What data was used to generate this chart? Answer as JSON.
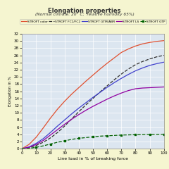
{
  "title": "Elongation properties",
  "subtitle": "(Normal climate: 20° C;  relative humidity 65%)",
  "xlabel": "Line load in % of breaking force",
  "ylabel": "Elongation in %",
  "background_color": "#f5f5d0",
  "plot_bg_color": "#dce6f0",
  "xlim": [
    0,
    100
  ],
  "ylim": [
    0,
    32
  ],
  "xticks": [
    0,
    10,
    20,
    30,
    40,
    50,
    60,
    70,
    80,
    90,
    100
  ],
  "yticks": [
    0,
    2,
    4,
    6,
    8,
    10,
    12,
    14,
    16,
    18,
    20,
    22,
    24,
    26,
    28,
    30,
    32
  ],
  "series": [
    {
      "label": "STROFT color",
      "color": "#e05030",
      "linestyle": "-",
      "linewidth": 0.9,
      "x": [
        0,
        5,
        10,
        15,
        20,
        25,
        30,
        35,
        40,
        45,
        50,
        55,
        60,
        65,
        70,
        75,
        80,
        85,
        90,
        95,
        100
      ],
      "y": [
        0,
        1.2,
        3.2,
        5.8,
        8.5,
        11.0,
        13.2,
        15.2,
        17.0,
        18.8,
        20.5,
        22.2,
        23.8,
        25.3,
        26.8,
        27.8,
        28.6,
        29.2,
        29.6,
        29.9,
        30.1
      ]
    },
    {
      "label": "STROFT FC1/FC2",
      "color": "#303030",
      "linestyle": "--",
      "linewidth": 0.9,
      "x": [
        0,
        5,
        10,
        15,
        20,
        25,
        30,
        35,
        40,
        45,
        50,
        55,
        60,
        65,
        70,
        75,
        80,
        85,
        90,
        95,
        100
      ],
      "y": [
        0,
        0.3,
        0.9,
        1.8,
        3.0,
        4.5,
        6.3,
        8.3,
        10.3,
        12.2,
        14.0,
        15.8,
        17.5,
        19.2,
        20.8,
        22.2,
        23.4,
        24.3,
        25.0,
        25.6,
        26.0
      ]
    },
    {
      "label": "STROFT GTM/ABR",
      "color": "#4040cc",
      "linestyle": "-",
      "linewidth": 0.9,
      "x": [
        0,
        5,
        10,
        15,
        20,
        25,
        30,
        35,
        40,
        45,
        50,
        55,
        60,
        65,
        70,
        75,
        80,
        85,
        90,
        95,
        100
      ],
      "y": [
        0,
        0.5,
        1.5,
        2.8,
        4.5,
        6.3,
        8.0,
        9.7,
        11.3,
        12.8,
        14.3,
        15.7,
        17.1,
        18.4,
        19.6,
        20.7,
        21.7,
        22.5,
        23.2,
        23.7,
        24.1
      ]
    },
    {
      "label": "STROFT LS",
      "color": "#9000a0",
      "linestyle": "-",
      "linewidth": 0.9,
      "x": [
        0,
        5,
        10,
        15,
        20,
        25,
        30,
        35,
        40,
        45,
        50,
        55,
        60,
        65,
        70,
        75,
        80,
        85,
        90,
        95,
        100
      ],
      "y": [
        0,
        0.4,
        1.2,
        2.3,
        3.8,
        5.3,
        6.8,
        8.2,
        9.5,
        10.7,
        11.8,
        12.8,
        13.8,
        14.7,
        15.5,
        16.2,
        16.7,
        16.9,
        17.0,
        17.1,
        17.2
      ]
    },
    {
      "label": "STROFT GTP",
      "color": "#006000",
      "linestyle": "--",
      "linewidth": 0.9,
      "marker": "s",
      "markersize": 1.5,
      "x": [
        0,
        5,
        10,
        15,
        20,
        25,
        30,
        35,
        40,
        45,
        50,
        55,
        60,
        65,
        70,
        75,
        80,
        85,
        90,
        95,
        100
      ],
      "y": [
        0,
        0.1,
        0.4,
        0.8,
        1.3,
        1.8,
        2.2,
        2.6,
        2.9,
        3.1,
        3.3,
        3.5,
        3.6,
        3.7,
        3.8,
        3.85,
        3.9,
        3.95,
        4.0,
        4.0,
        4.05
      ]
    }
  ]
}
